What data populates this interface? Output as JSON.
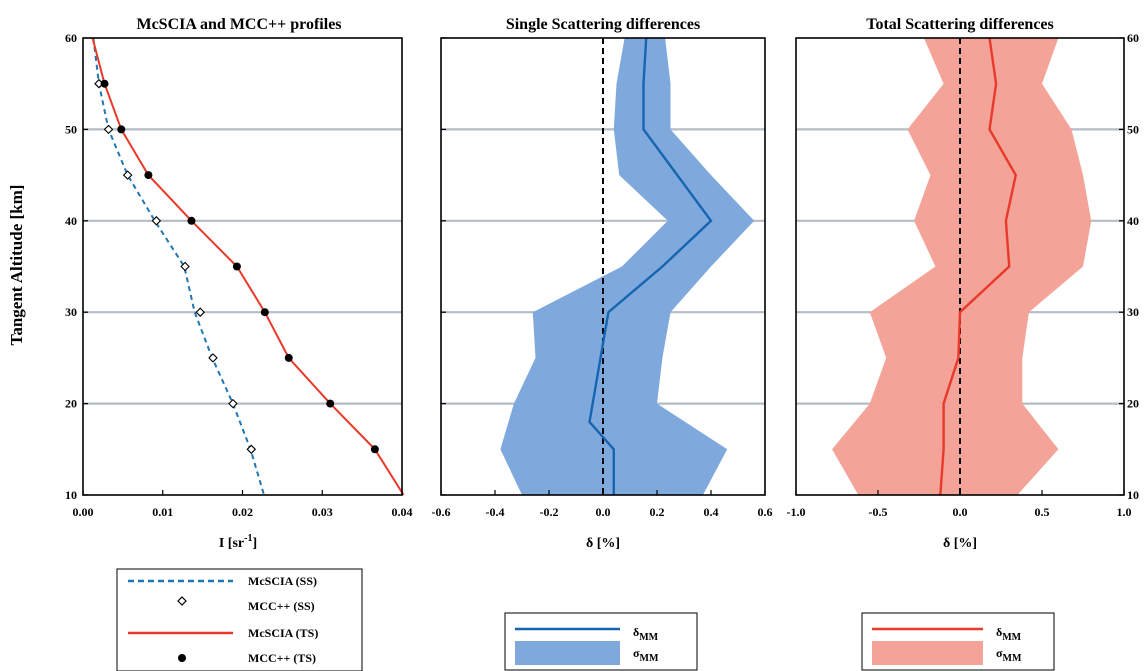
{
  "chart_data": [
    {
      "type": "line",
      "title": "McSCIA and MCC++ profiles",
      "xlabel": "I [sr",
      "xlabel_sup": "-1",
      "xlabel_tail": "]",
      "ylabel": "Tangent Altitude [km]",
      "xlim": [
        0,
        0.04
      ],
      "ylim": [
        10,
        60
      ],
      "xticks": [
        "0.00",
        "0.01",
        "0.02",
        "0.03",
        "0.04"
      ],
      "yticks": [
        "10",
        "20",
        "30",
        "40",
        "50",
        "60"
      ],
      "grid_y": [
        20,
        30,
        40,
        50
      ],
      "series": [
        {
          "name": "McSCIA (SS)",
          "style": "dashed",
          "color": "#1f77b4",
          "x": [
            0.0013,
            0.002,
            0.0032,
            0.0056,
            0.009,
            0.0127,
            0.014,
            0.0162,
            0.0188,
            0.021,
            0.0227
          ],
          "y": [
            60,
            55,
            50,
            45,
            40,
            35,
            30,
            25,
            20,
            15,
            10
          ]
        },
        {
          "name": "MCC++ (SS)",
          "style": "diamond",
          "color": "#000000",
          "x": [
            0.002,
            0.0032,
            0.0056,
            0.0092,
            0.0128,
            0.0147,
            0.0163,
            0.0188,
            0.0211
          ],
          "y": [
            55,
            50,
            45,
            40,
            35,
            30,
            25,
            20,
            15
          ]
        },
        {
          "name": "McSCIA (TS)",
          "style": "solid",
          "color": "#e8392b",
          "x": [
            0.0012,
            0.0027,
            0.0048,
            0.0082,
            0.0136,
            0.0193,
            0.0228,
            0.0258,
            0.031,
            0.0366,
            0.0402
          ],
          "y": [
            60,
            55,
            50,
            45,
            40,
            35,
            30,
            25,
            20,
            15,
            10
          ]
        },
        {
          "name": "MCC++ (TS)",
          "style": "dot",
          "color": "#000000",
          "x": [
            0.0027,
            0.0048,
            0.0082,
            0.0136,
            0.0193,
            0.0228,
            0.0258,
            0.031,
            0.0366
          ],
          "y": [
            55,
            50,
            45,
            40,
            35,
            30,
            25,
            20,
            15
          ]
        }
      ],
      "legend": [
        "McSCIA (SS)",
        "MCC++ (SS)",
        "McSCIA (TS)",
        "MCC++ (TS)"
      ]
    },
    {
      "type": "area",
      "title": "Single Scattering differences",
      "xlabel": "δ [%]",
      "xlim": [
        -0.6,
        0.6
      ],
      "ylim": [
        10,
        60
      ],
      "xticks": [
        "-0.6",
        "-0.4",
        "-0.2",
        "0.0",
        "0.2",
        "0.4",
        "0.6"
      ],
      "grid_y": [
        20,
        30,
        40,
        50
      ],
      "colors": {
        "line": "#1565b0",
        "band": "#7fa9dc"
      },
      "series": [
        {
          "name": "δ_MM",
          "y": [
            10,
            15,
            18,
            30,
            35,
            40,
            50,
            55,
            60
          ],
          "x": [
            0.04,
            0.04,
            -0.05,
            0.02,
            0.22,
            0.4,
            0.15,
            0.15,
            0.16
          ]
        },
        {
          "name": "σ_MM",
          "y": [
            10,
            15,
            20,
            25,
            30,
            35,
            40,
            45,
            50,
            55,
            60
          ],
          "lower": [
            -0.3,
            -0.38,
            -0.33,
            -0.25,
            -0.26,
            0.07,
            0.24,
            0.06,
            0.04,
            0.05,
            0.08
          ],
          "upper": [
            0.37,
            0.46,
            0.2,
            0.22,
            0.25,
            0.4,
            0.56,
            0.4,
            0.25,
            0.25,
            0.23
          ]
        }
      ],
      "legend": [
        "δ",
        "σ"
      ],
      "legend_sub": "MM"
    },
    {
      "type": "area",
      "title": "Total Scattering differences",
      "xlabel": "δ [%]",
      "xlim": [
        -1.0,
        1.0
      ],
      "ylim": [
        10,
        60
      ],
      "xticks": [
        "-1.0",
        "-0.5",
        "0.0",
        "0.5",
        "1.0"
      ],
      "yticks_right": [
        "10",
        "20",
        "30",
        "40",
        "50",
        "60"
      ],
      "grid_y": [
        20,
        30,
        40,
        50
      ],
      "colors": {
        "line": "#e8392b",
        "band": "#f3a398"
      },
      "series": [
        {
          "name": "δ_MM",
          "y": [
            10,
            15,
            20,
            25,
            30,
            35,
            40,
            45,
            50,
            55,
            60
          ],
          "x": [
            -0.12,
            -0.1,
            -0.1,
            -0.01,
            0.0,
            0.3,
            0.28,
            0.34,
            0.18,
            0.22,
            0.18
          ]
        },
        {
          "name": "σ_MM",
          "y": [
            10,
            15,
            20,
            25,
            30,
            35,
            40,
            45,
            50,
            55,
            60
          ],
          "lower": [
            -0.62,
            -0.78,
            -0.55,
            -0.45,
            -0.55,
            -0.15,
            -0.28,
            -0.18,
            -0.32,
            -0.1,
            -0.22
          ],
          "upper": [
            0.35,
            0.6,
            0.38,
            0.38,
            0.42,
            0.75,
            0.8,
            0.75,
            0.68,
            0.5,
            0.6
          ]
        }
      ],
      "legend": [
        "δ",
        "σ"
      ],
      "legend_sub": "MM"
    }
  ]
}
